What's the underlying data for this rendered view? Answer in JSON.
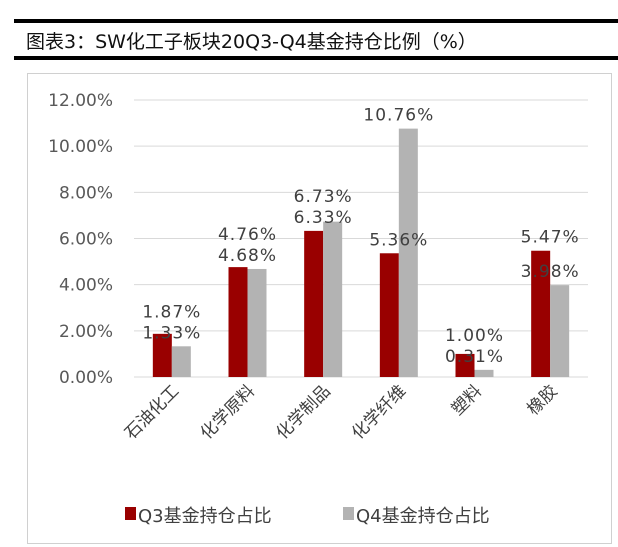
{
  "title": "图表3：SW化工子板块20Q3-Q4基金持仓比例（%）",
  "chart_data": {
    "type": "bar",
    "title": "图表3：SW化工子板块20Q3-Q4基金持仓比例（%）",
    "categories": [
      "石油化工",
      "化学原料",
      "化学制品",
      "化学纤维",
      "塑料",
      "橡胶"
    ],
    "series": [
      {
        "name": "Q3基金持仓占比",
        "color": "#990000",
        "values": [
          1.87,
          4.76,
          6.33,
          5.36,
          1.0,
          5.47
        ]
      },
      {
        "name": "Q4基金持仓占比",
        "color": "#b3b3b3",
        "values": [
          1.33,
          4.68,
          6.73,
          10.76,
          0.31,
          3.98
        ]
      }
    ],
    "yticks": [
      "0.00%",
      "2.00%",
      "4.00%",
      "6.00%",
      "8.00%",
      "10.00%",
      "12.00%"
    ],
    "ylim": [
      0,
      12
    ],
    "grid": true,
    "legend": "bottom",
    "xlabel": "",
    "ylabel": ""
  }
}
